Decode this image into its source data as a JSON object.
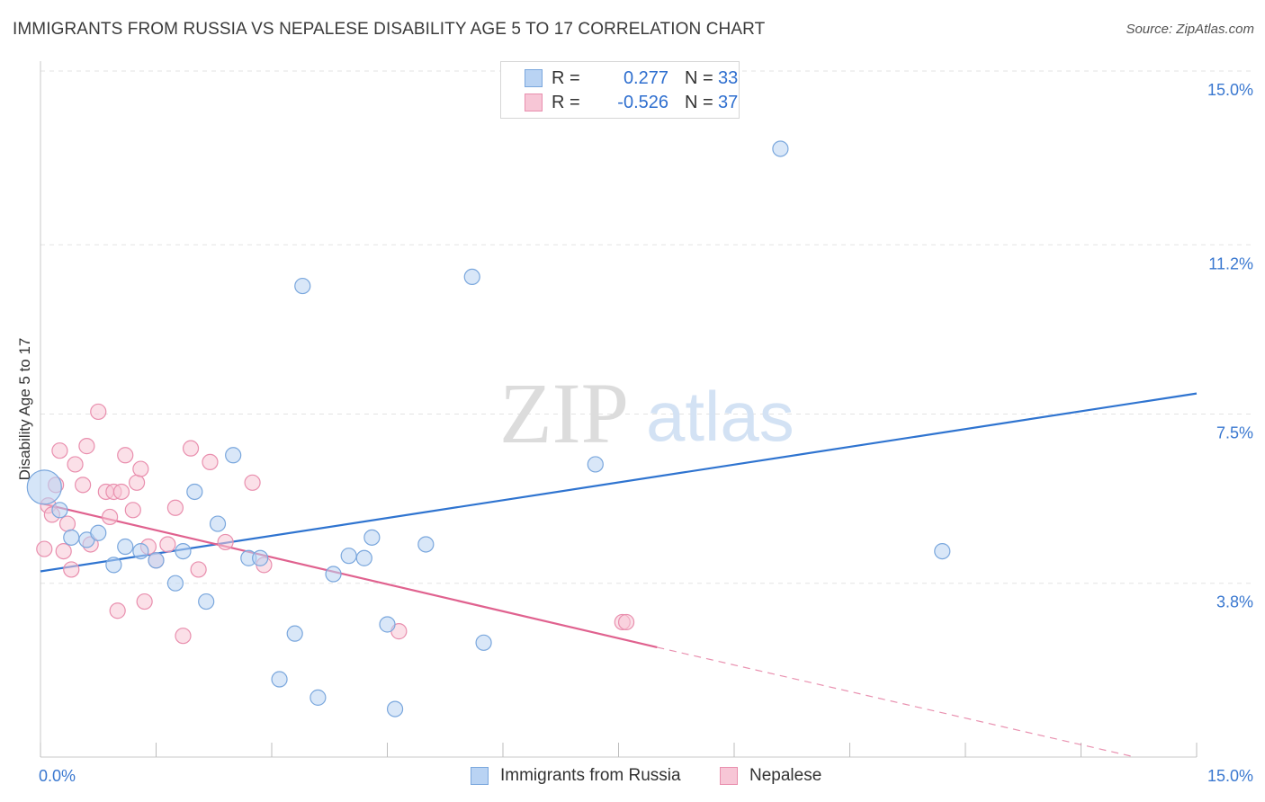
{
  "header": {
    "title": "IMMIGRANTS FROM RUSSIA VS NEPALESE DISABILITY AGE 5 TO 17 CORRELATION CHART",
    "source": "Source: ZipAtlas.com"
  },
  "watermark": {
    "zip": "ZIP",
    "atlas": "atlas"
  },
  "legend": {
    "rows": [
      {
        "r_label": "R =",
        "r_value": "0.277",
        "n_label": "N =",
        "n_value": "33"
      },
      {
        "r_label": "R =",
        "r_value": "-0.526",
        "n_label": "N =",
        "n_value": "37"
      }
    ]
  },
  "colors": {
    "russia_fill": "#b9d3f3",
    "russia_stroke": "#7aa7dd",
    "russia_line": "#2f74d0",
    "nepal_fill": "#f7c6d6",
    "nepal_stroke": "#e98fae",
    "nepal_line": "#e0628f",
    "tick_label": "#3a78d0",
    "grid": "#e3e3e3"
  },
  "chart_data": {
    "type": "scatter",
    "title": "IMMIGRANTS FROM RUSSIA VS NEPALESE DISABILITY AGE 5 TO 17 CORRELATION CHART",
    "xlabel": "",
    "ylabel": "Disability Age 5 to 17",
    "xlim": [
      0,
      15
    ],
    "ylim": [
      0,
      15
    ],
    "x_tick_labels": [
      "0.0%",
      "15.0%"
    ],
    "y_ticks": [
      {
        "value": 3.8,
        "label": "3.8%"
      },
      {
        "value": 7.5,
        "label": "7.5%"
      },
      {
        "value": 11.2,
        "label": "11.2%"
      },
      {
        "value": 15.0,
        "label": "15.0%"
      }
    ],
    "grid": "horizontal dashed",
    "legend_position": "top-center",
    "series": [
      {
        "name": "Immigrants from Russia",
        "points": [
          [
            0.05,
            5.9
          ],
          [
            0.25,
            5.4
          ],
          [
            0.4,
            4.8
          ],
          [
            0.6,
            4.75
          ],
          [
            0.75,
            4.9
          ],
          [
            0.95,
            4.2
          ],
          [
            1.1,
            4.6
          ],
          [
            1.3,
            4.5
          ],
          [
            1.5,
            4.3
          ],
          [
            1.75,
            3.8
          ],
          [
            1.85,
            4.5
          ],
          [
            2.0,
            5.8
          ],
          [
            2.15,
            3.4
          ],
          [
            2.3,
            5.1
          ],
          [
            2.5,
            6.6
          ],
          [
            2.7,
            4.35
          ],
          [
            2.85,
            4.35
          ],
          [
            3.3,
            2.7
          ],
          [
            3.1,
            1.7
          ],
          [
            3.4,
            10.3
          ],
          [
            3.6,
            1.3
          ],
          [
            3.8,
            4.0
          ],
          [
            4.0,
            4.4
          ],
          [
            4.2,
            4.35
          ],
          [
            4.3,
            4.8
          ],
          [
            4.5,
            2.9
          ],
          [
            4.6,
            1.05
          ],
          [
            5.0,
            4.65
          ],
          [
            5.6,
            10.5
          ],
          [
            5.75,
            2.5
          ],
          [
            7.2,
            6.4
          ],
          [
            9.6,
            13.3
          ],
          [
            11.7,
            4.5
          ]
        ],
        "trend": {
          "x": [
            0,
            15
          ],
          "y": [
            4.06,
            7.95
          ]
        }
      },
      {
        "name": "Nepalese",
        "points": [
          [
            0.05,
            4.55
          ],
          [
            0.1,
            5.5
          ],
          [
            0.15,
            5.3
          ],
          [
            0.2,
            5.95
          ],
          [
            0.25,
            6.7
          ],
          [
            0.3,
            4.5
          ],
          [
            0.35,
            5.1
          ],
          [
            0.4,
            4.1
          ],
          [
            0.45,
            6.4
          ],
          [
            0.55,
            5.95
          ],
          [
            0.6,
            6.8
          ],
          [
            0.65,
            4.65
          ],
          [
            0.75,
            7.55
          ],
          [
            0.85,
            5.8
          ],
          [
            0.9,
            5.25
          ],
          [
            0.95,
            5.8
          ],
          [
            1.0,
            3.2
          ],
          [
            1.05,
            5.8
          ],
          [
            1.1,
            6.6
          ],
          [
            1.2,
            5.4
          ],
          [
            1.25,
            6.0
          ],
          [
            1.3,
            6.3
          ],
          [
            1.35,
            3.4
          ],
          [
            1.4,
            4.6
          ],
          [
            1.5,
            4.3
          ],
          [
            1.65,
            4.65
          ],
          [
            1.75,
            5.45
          ],
          [
            1.85,
            2.65
          ],
          [
            1.95,
            6.75
          ],
          [
            2.05,
            4.1
          ],
          [
            2.2,
            6.45
          ],
          [
            2.4,
            4.7
          ],
          [
            2.75,
            6.0
          ],
          [
            2.9,
            4.2
          ],
          [
            4.65,
            2.75
          ],
          [
            7.55,
            2.95
          ],
          [
            7.6,
            2.95
          ]
        ],
        "trend": {
          "x": [
            0,
            8.0
          ],
          "y": [
            5.55,
            2.4
          ]
        },
        "trend_extension": {
          "x": [
            8.0,
            14.2
          ],
          "y": [
            2.4,
            0.0
          ]
        }
      }
    ]
  },
  "bottom_legend": {
    "items": [
      {
        "label": "Immigrants from Russia"
      },
      {
        "label": "Nepalese"
      }
    ]
  }
}
